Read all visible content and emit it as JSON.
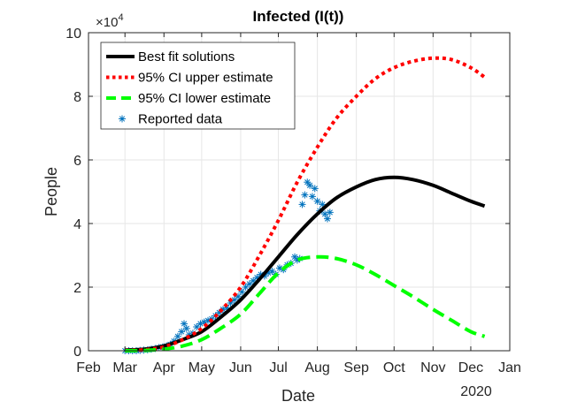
{
  "chart_data": {
    "type": "line",
    "title": "Infected (I(t))",
    "xlabel": "Date",
    "ylabel": "People",
    "y_exponent_label": "×10",
    "y_exponent_power": "4",
    "x_year_label": "2020",
    "xlim_days_since_feb1": [
      0,
      335
    ],
    "ylim": [
      0,
      10
    ],
    "y_unit_multiplier": 10000,
    "grid": true,
    "legend_position": "top-left",
    "x_ticks": [
      {
        "label": "Feb",
        "day": 0
      },
      {
        "label": "Mar",
        "day": 29
      },
      {
        "label": "Apr",
        "day": 60
      },
      {
        "label": "May",
        "day": 90
      },
      {
        "label": "Jun",
        "day": 121
      },
      {
        "label": "Jul",
        "day": 151
      },
      {
        "label": "Aug",
        "day": 182
      },
      {
        "label": "Sep",
        "day": 213
      },
      {
        "label": "Oct",
        "day": 243
      },
      {
        "label": "Nov",
        "day": 274
      },
      {
        "label": "Dec",
        "day": 304
      },
      {
        "label": "Jan",
        "day": 335
      }
    ],
    "y_ticks": [
      {
        "label": "0",
        "value": 0
      },
      {
        "label": "2",
        "value": 2
      },
      {
        "label": "4",
        "value": 4
      },
      {
        "label": "6",
        "value": 6
      },
      {
        "label": "8",
        "value": 8
      },
      {
        "label": "10",
        "value": 10
      }
    ],
    "series": [
      {
        "name": "Best fit solutions",
        "color": "#000000",
        "style": "solid",
        "x": [
          29,
          45,
          60,
          75,
          90,
          105,
          121,
          136,
          151,
          166,
          182,
          197,
          213,
          228,
          243,
          258,
          274,
          289,
          304,
          315
        ],
        "y": [
          0.02,
          0.05,
          0.15,
          0.35,
          0.6,
          1.05,
          1.6,
          2.25,
          2.95,
          3.65,
          4.3,
          4.8,
          5.15,
          5.38,
          5.45,
          5.38,
          5.2,
          4.95,
          4.7,
          4.55
        ]
      },
      {
        "name": "95% CI upper estimate",
        "color": "#ff0000",
        "style": "dotted",
        "x": [
          29,
          45,
          60,
          75,
          90,
          105,
          121,
          136,
          151,
          166,
          182,
          197,
          213,
          228,
          243,
          258,
          274,
          289,
          304,
          315
        ],
        "y": [
          0.01,
          0.03,
          0.12,
          0.35,
          0.7,
          1.25,
          2.0,
          3.0,
          4.1,
          5.3,
          6.4,
          7.3,
          8.0,
          8.55,
          8.9,
          9.1,
          9.2,
          9.15,
          8.9,
          8.6
        ]
      },
      {
        "name": "95% CI lower estimate",
        "color": "#00ff00",
        "style": "dashed",
        "x": [
          29,
          45,
          60,
          75,
          90,
          105,
          121,
          136,
          151,
          166,
          182,
          197,
          213,
          228,
          243,
          258,
          274,
          289,
          304,
          315
        ],
        "y": [
          0,
          0.01,
          0.05,
          0.15,
          0.35,
          0.7,
          1.15,
          1.8,
          2.45,
          2.85,
          2.95,
          2.9,
          2.7,
          2.4,
          2.05,
          1.7,
          1.3,
          0.95,
          0.6,
          0.45
        ]
      },
      {
        "name": "Reported data",
        "color": "#0072bd",
        "style": "marker-asterisk",
        "x": [
          29,
          32,
          35,
          38,
          41,
          44,
          47,
          50,
          53,
          56,
          59,
          62,
          65,
          68,
          71,
          74,
          76,
          78,
          80,
          83,
          86,
          89,
          92,
          95,
          98,
          101,
          104,
          107,
          110,
          113,
          116,
          119,
          122,
          125,
          128,
          131,
          134,
          137,
          140,
          143,
          146,
          149,
          152,
          155,
          158,
          161,
          164,
          166,
          168,
          170,
          172,
          174,
          176,
          178,
          180,
          182,
          184,
          186,
          188,
          190,
          192
        ],
        "y": [
          0,
          0,
          0,
          0,
          0.01,
          0.02,
          0.03,
          0.05,
          0.07,
          0.1,
          0.12,
          0.15,
          0.2,
          0.3,
          0.45,
          0.6,
          0.85,
          0.7,
          0.5,
          0.55,
          0.75,
          0.85,
          0.9,
          0.95,
          1.0,
          1.1,
          1.2,
          1.3,
          1.35,
          1.5,
          1.6,
          1.7,
          1.85,
          2.0,
          2.1,
          2.2,
          2.3,
          2.4,
          2.35,
          2.45,
          2.5,
          2.4,
          2.6,
          2.55,
          2.7,
          2.75,
          2.95,
          2.85,
          2.9,
          4.6,
          4.9,
          5.3,
          5.2,
          4.85,
          5.1,
          4.7,
          4.4,
          4.6,
          4.3,
          4.15,
          4.35
        ]
      }
    ]
  }
}
